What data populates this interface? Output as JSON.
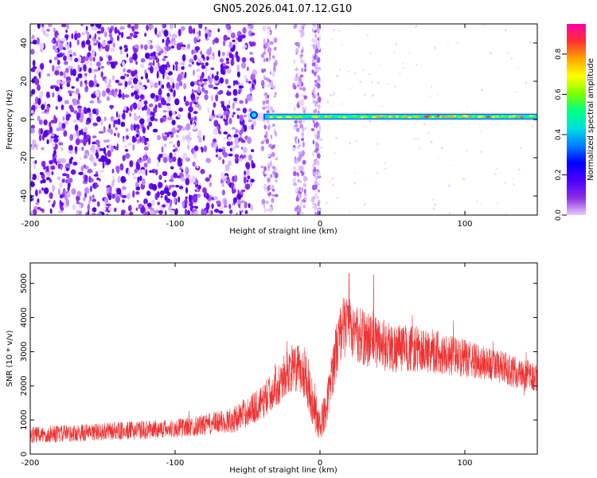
{
  "title": "GN05.2026.041.07.12.G10",
  "chart_data": [
    {
      "type": "heatmap",
      "name": "spectrogram",
      "xlabel": "Height of straight line (km)",
      "ylabel": "Frequency (Hz)",
      "xlim": [
        -200,
        150
      ],
      "ylim": [
        -50,
        50
      ],
      "xticks": [
        -200,
        -100,
        0,
        100
      ],
      "yticks": [
        -40,
        -20,
        0,
        20,
        40
      ],
      "colorbar": {
        "label": "Normalized spectral amplitude",
        "range": [
          0,
          0.95
        ],
        "ticks": [
          0.0,
          0.2,
          0.4,
          0.6,
          0.8
        ],
        "tick_labels": [
          "0.0",
          "0.2",
          "0.4",
          "0.6",
          "0.8"
        ],
        "colormap": [
          "#e6ccff",
          "#8a2be2",
          "#4b00ff",
          "#0000ff",
          "#0080ff",
          "#00e0e0",
          "#00ff80",
          "#80ff00",
          "#ffff00",
          "#ffa500",
          "#ff3030",
          "#ff00aa"
        ]
      },
      "features": {
        "noise_region_km": [
          -200,
          -45
        ],
        "strip_regions_km": [
          [
            -40,
            -30
          ],
          [
            -18,
            -10
          ],
          [
            -5,
            0
          ]
        ],
        "signal_band": {
          "x_start_km": -50,
          "x_end_km": 150,
          "center_hz": 1.5,
          "width_hz": 3
        }
      }
    },
    {
      "type": "line",
      "name": "snr",
      "xlabel": "Height of straight line (km)",
      "ylabel": "SNR (10 * v/v)",
      "xlim": [
        -200,
        150
      ],
      "ylim": [
        0,
        5600
      ],
      "xticks": [
        -200,
        -100,
        0,
        100
      ],
      "yticks": [
        0,
        1000,
        2000,
        3000,
        4000,
        5000
      ],
      "color": "#ee3333",
      "envelope": {
        "x": [
          -200,
          -150,
          -100,
          -80,
          -60,
          -40,
          -20,
          -10,
          -5,
          0,
          5,
          10,
          15,
          20,
          25,
          30,
          40,
          50,
          60,
          80,
          100,
          120,
          150
        ],
        "mean": [
          550,
          650,
          750,
          850,
          1000,
          1500,
          2500,
          2400,
          1500,
          800,
          1500,
          2800,
          3700,
          3800,
          3500,
          3400,
          3300,
          3100,
          3100,
          3000,
          2800,
          2600,
          2200
        ],
        "spread": [
          250,
          260,
          280,
          300,
          380,
          500,
          700,
          800,
          700,
          500,
          600,
          800,
          900,
          900,
          850,
          850,
          800,
          750,
          700,
          650,
          550,
          500,
          450
        ],
        "peak_x": [
          20,
          37
        ],
        "peak_values": [
          5300,
          5250
        ]
      }
    }
  ]
}
